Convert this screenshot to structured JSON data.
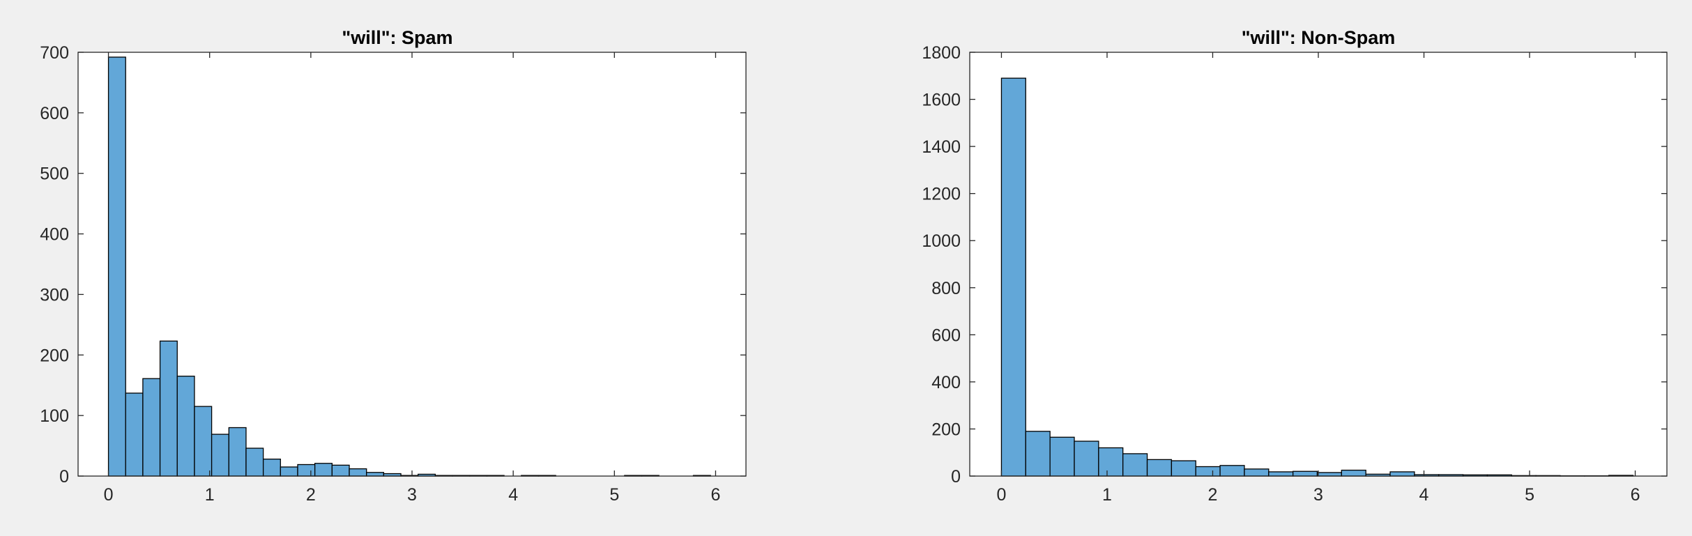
{
  "chart_data": [
    {
      "type": "bar",
      "title": "\"will\": Spam",
      "xlabel": "",
      "ylabel": "",
      "xlim": [
        -0.3,
        6.3
      ],
      "ylim": [
        0,
        700
      ],
      "xticks": [
        0,
        1,
        2,
        3,
        4,
        5,
        6
      ],
      "yticks": [
        0,
        100,
        200,
        300,
        400,
        500,
        600,
        700
      ],
      "bin_width": 0.17,
      "bin_starts": [
        0,
        0.17,
        0.34,
        0.51,
        0.68,
        0.85,
        1.02,
        1.19,
        1.36,
        1.53,
        1.7,
        1.87,
        2.04,
        2.21,
        2.38,
        2.55,
        2.72,
        2.89,
        3.06,
        3.23,
        3.4,
        3.57,
        3.74,
        3.91,
        4.08,
        4.25,
        4.42,
        4.59,
        4.76,
        4.93,
        5.1,
        5.27,
        5.44,
        5.61,
        5.78
      ],
      "values": [
        692,
        137,
        161,
        223,
        165,
        115,
        69,
        80,
        46,
        28,
        15,
        19,
        21,
        18,
        12,
        6,
        4,
        1,
        3,
        1,
        1,
        1,
        1,
        0,
        1,
        1,
        0,
        0,
        0,
        0,
        1,
        1,
        0,
        0,
        1
      ],
      "grid": false,
      "bar_color": "#62a7d8",
      "edge_color": "#000000"
    },
    {
      "type": "bar",
      "title": "\"will\": Non-Spam",
      "xlabel": "",
      "ylabel": "",
      "xlim": [
        -0.3,
        6.3
      ],
      "ylim": [
        0,
        1800
      ],
      "xticks": [
        0,
        1,
        2,
        3,
        4,
        5,
        6
      ],
      "yticks": [
        0,
        200,
        400,
        600,
        800,
        1000,
        1200,
        1400,
        1600,
        1800
      ],
      "bin_width": 0.23,
      "bin_starts": [
        0,
        0.23,
        0.46,
        0.69,
        0.92,
        1.15,
        1.38,
        1.61,
        1.84,
        2.07,
        2.3,
        2.53,
        2.76,
        2.99,
        3.22,
        3.45,
        3.68,
        3.91,
        4.14,
        4.37,
        4.6,
        4.83,
        5.06,
        5.29,
        5.52,
        5.75
      ],
      "values": [
        1690,
        190,
        165,
        148,
        120,
        95,
        70,
        65,
        40,
        45,
        30,
        18,
        20,
        15,
        25,
        8,
        18,
        6,
        6,
        5,
        5,
        2,
        2,
        1,
        1,
        3
      ],
      "grid": false,
      "bar_color": "#62a7d8",
      "edge_color": "#000000"
    }
  ]
}
